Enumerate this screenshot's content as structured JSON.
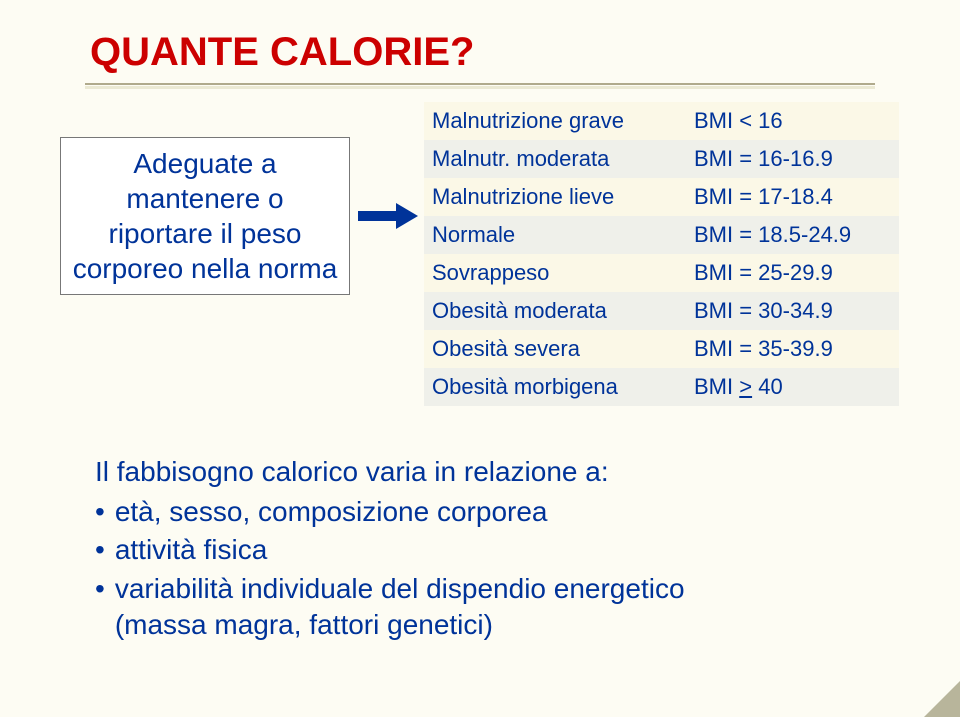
{
  "title": "QUANTE CALORIE?",
  "box": {
    "l1": "Adeguate a",
    "l2": "mantenere o",
    "l3": "riportare il peso",
    "l4": "corporeo nella norma"
  },
  "table": {
    "rows": [
      {
        "cat": "Malnutrizione grave",
        "val": "BMI < 16"
      },
      {
        "cat": "Malnutr. moderata",
        "val": "BMI = 16-16.9"
      },
      {
        "cat": "Malnutrizione lieve",
        "val": "BMI = 17-18.4"
      },
      {
        "cat": "Normale",
        "val": "BMI = 18.5-24.9"
      },
      {
        "cat": "Sovrappeso",
        "val": "BMI = 25-29.9"
      },
      {
        "cat": "Obesità moderata",
        "val": "BMI = 30-34.9"
      },
      {
        "cat": "Obesità severa",
        "val": "BMI = 35-39.9"
      },
      {
        "cat": "Obesità morbigena",
        "val_prefix": "BMI ",
        "val_ge": ">",
        "val_suffix": " 40"
      }
    ]
  },
  "bottom": {
    "lead": "Il fabbisogno calorico varia in relazione a:",
    "b1": "età, sesso, composizione corporea",
    "b2": "attività fisica",
    "b3a": "variabilità individuale del dispendio energetico",
    "b3b": "(massa magra, fattori genetici)"
  },
  "colors": {
    "bg": "#fdfcf3",
    "title": "#cc0000",
    "text": "#003399",
    "odd": "#fbf8e7",
    "even": "#eff0ea"
  },
  "fonts": {
    "title_size": 40,
    "body_size": 28,
    "table_size": 22
  }
}
